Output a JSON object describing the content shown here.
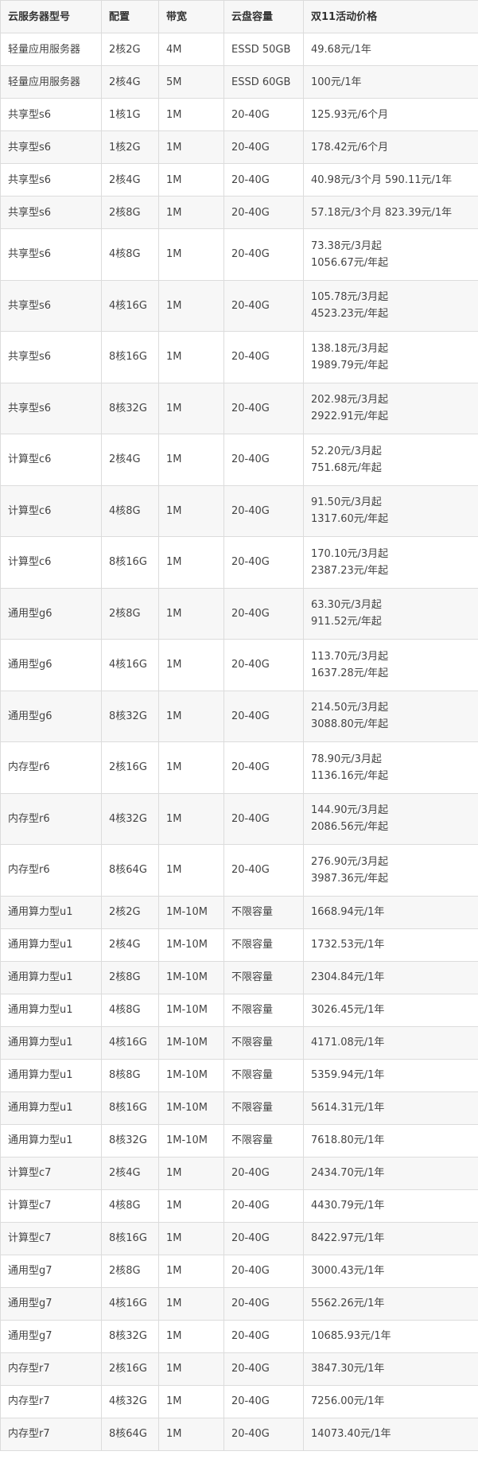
{
  "headers": [
    "云服务器型号",
    "配置",
    "带宽",
    "云盘容量",
    "双11活动价格"
  ],
  "rows": [
    {
      "model": "轻量应用服务器",
      "config": "2核2G",
      "bandwidth": "4M",
      "disk": "ESSD 50GB",
      "price": [
        "49.68元/1年"
      ]
    },
    {
      "model": "轻量应用服务器",
      "config": "2核4G",
      "bandwidth": "5M",
      "disk": "ESSD 60GB",
      "price": [
        "100元/1年"
      ]
    },
    {
      "model": "共享型s6",
      "config": "1核1G",
      "bandwidth": "1M",
      "disk": "20-40G",
      "price": [
        "125.93元/6个月"
      ]
    },
    {
      "model": "共享型s6",
      "config": "1核2G",
      "bandwidth": "1M",
      "disk": "20-40G",
      "price": [
        "178.42元/6个月"
      ]
    },
    {
      "model": "共享型s6",
      "config": "2核4G",
      "bandwidth": "1M",
      "disk": "20-40G",
      "price": [
        "40.98元/3个月 590.11元/1年"
      ]
    },
    {
      "model": "共享型s6",
      "config": "2核8G",
      "bandwidth": "1M",
      "disk": "20-40G",
      "price": [
        "57.18元/3个月 823.39元/1年"
      ]
    },
    {
      "model": "共享型s6",
      "config": "4核8G",
      "bandwidth": "1M",
      "disk": "20-40G",
      "price": [
        "73.38元/3月起",
        "1056.67元/年起"
      ]
    },
    {
      "model": "共享型s6",
      "config": "4核16G",
      "bandwidth": "1M",
      "disk": "20-40G",
      "price": [
        "105.78元/3月起",
        "4523.23元/年起"
      ]
    },
    {
      "model": "共享型s6",
      "config": "8核16G",
      "bandwidth": "1M",
      "disk": "20-40G",
      "price": [
        "138.18元/3月起",
        "1989.79元/年起"
      ]
    },
    {
      "model": "共享型s6",
      "config": "8核32G",
      "bandwidth": "1M",
      "disk": "20-40G",
      "price": [
        "202.98元/3月起",
        "2922.91元/年起"
      ]
    },
    {
      "model": "计算型c6",
      "config": "2核4G",
      "bandwidth": "1M",
      "disk": "20-40G",
      "price": [
        "52.20元/3月起",
        "751.68元/年起"
      ]
    },
    {
      "model": "计算型c6",
      "config": "4核8G",
      "bandwidth": "1M",
      "disk": "20-40G",
      "price": [
        "91.50元/3月起",
        "1317.60元/年起"
      ]
    },
    {
      "model": "计算型c6",
      "config": "8核16G",
      "bandwidth": "1M",
      "disk": "20-40G",
      "price": [
        "170.10元/3月起",
        "2387.23元/年起"
      ]
    },
    {
      "model": "通用型g6",
      "config": "2核8G",
      "bandwidth": "1M",
      "disk": "20-40G",
      "price": [
        "63.30元/3月起",
        "911.52元/年起"
      ]
    },
    {
      "model": "通用型g6",
      "config": "4核16G",
      "bandwidth": "1M",
      "disk": "20-40G",
      "price": [
        "113.70元/3月起",
        "1637.28元/年起"
      ]
    },
    {
      "model": "通用型g6",
      "config": "8核32G",
      "bandwidth": "1M",
      "disk": "20-40G",
      "price": [
        "214.50元/3月起",
        "3088.80元/年起"
      ]
    },
    {
      "model": "内存型r6",
      "config": "2核16G",
      "bandwidth": "1M",
      "disk": "20-40G",
      "price": [
        "78.90元/3月起",
        "1136.16元/年起"
      ]
    },
    {
      "model": "内存型r6",
      "config": "4核32G",
      "bandwidth": "1M",
      "disk": "20-40G",
      "price": [
        "144.90元/3月起",
        "2086.56元/年起"
      ]
    },
    {
      "model": "内存型r6",
      "config": "8核64G",
      "bandwidth": "1M",
      "disk": "20-40G",
      "price": [
        "276.90元/3月起",
        "3987.36元/年起"
      ]
    },
    {
      "model": "通用算力型u1",
      "config": "2核2G",
      "bandwidth": "1M-10M",
      "disk": "不限容量",
      "price": [
        "1668.94元/1年"
      ]
    },
    {
      "model": "通用算力型u1",
      "config": "2核4G",
      "bandwidth": "1M-10M",
      "disk": "不限容量",
      "price": [
        "1732.53元/1年"
      ]
    },
    {
      "model": "通用算力型u1",
      "config": "2核8G",
      "bandwidth": "1M-10M",
      "disk": "不限容量",
      "price": [
        "2304.84元/1年"
      ]
    },
    {
      "model": "通用算力型u1",
      "config": "4核8G",
      "bandwidth": "1M-10M",
      "disk": "不限容量",
      "price": [
        "3026.45元/1年"
      ]
    },
    {
      "model": "通用算力型u1",
      "config": "4核16G",
      "bandwidth": "1M-10M",
      "disk": "不限容量",
      "price": [
        "4171.08元/1年"
      ]
    },
    {
      "model": "通用算力型u1",
      "config": "8核8G",
      "bandwidth": "1M-10M",
      "disk": "不限容量",
      "price": [
        "5359.94元/1年"
      ]
    },
    {
      "model": "通用算力型u1",
      "config": "8核16G",
      "bandwidth": "1M-10M",
      "disk": "不限容量",
      "price": [
        "5614.31元/1年"
      ]
    },
    {
      "model": "通用算力型u1",
      "config": "8核32G",
      "bandwidth": "1M-10M",
      "disk": "不限容量",
      "price": [
        "7618.80元/1年"
      ]
    },
    {
      "model": "计算型c7",
      "config": "2核4G",
      "bandwidth": "1M",
      "disk": "20-40G",
      "price": [
        "2434.70元/1年"
      ]
    },
    {
      "model": "计算型c7",
      "config": "4核8G",
      "bandwidth": "1M",
      "disk": "20-40G",
      "price": [
        "4430.79元/1年"
      ]
    },
    {
      "model": "计算型c7",
      "config": "8核16G",
      "bandwidth": "1M",
      "disk": "20-40G",
      "price": [
        "8422.97元/1年"
      ]
    },
    {
      "model": "通用型g7",
      "config": "2核8G",
      "bandwidth": "1M",
      "disk": "20-40G",
      "price": [
        "3000.43元/1年"
      ]
    },
    {
      "model": "通用型g7",
      "config": "4核16G",
      "bandwidth": "1M",
      "disk": "20-40G",
      "price": [
        "5562.26元/1年"
      ]
    },
    {
      "model": "通用型g7",
      "config": "8核32G",
      "bandwidth": "1M",
      "disk": "20-40G",
      "price": [
        "10685.93元/1年"
      ]
    },
    {
      "model": "内存型r7",
      "config": "2核16G",
      "bandwidth": "1M",
      "disk": "20-40G",
      "price": [
        "3847.30元/1年"
      ]
    },
    {
      "model": "内存型r7",
      "config": "4核32G",
      "bandwidth": "1M",
      "disk": "20-40G",
      "price": [
        "7256.00元/1年"
      ]
    },
    {
      "model": "内存型r7",
      "config": "8核64G",
      "bandwidth": "1M",
      "disk": "20-40G",
      "price": [
        "14073.40元/1年"
      ]
    }
  ]
}
